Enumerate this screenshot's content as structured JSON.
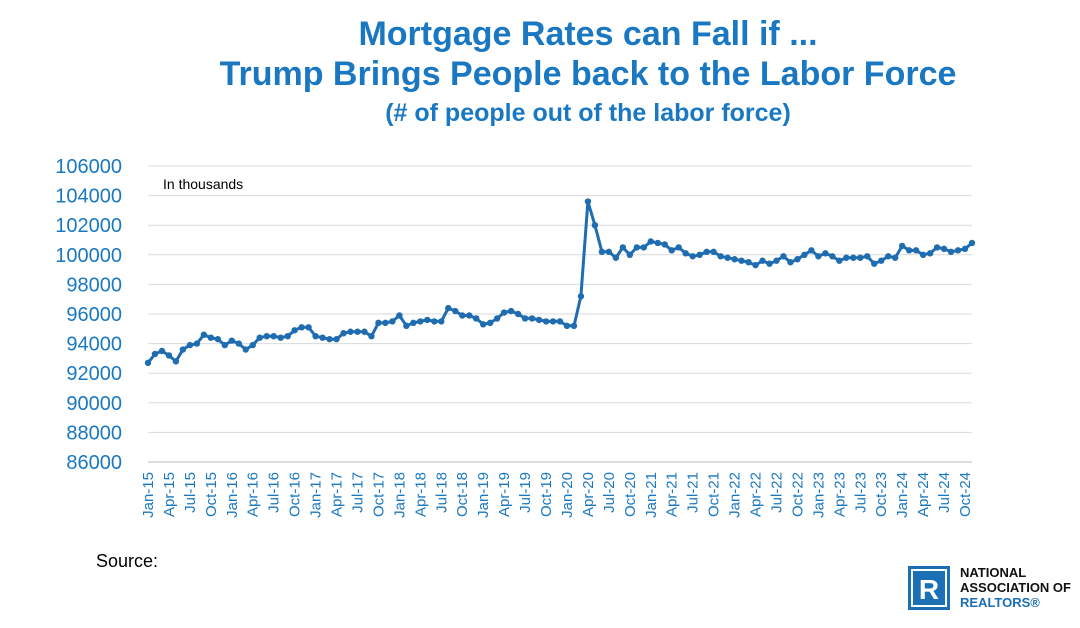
{
  "title": {
    "line1": "Mortgage Rates can Fall if ...",
    "line2": "Trump Brings People back to the Labor Force",
    "subtitle": "(# of people out of the labor force)"
  },
  "colors": {
    "title": "#1a78c2",
    "series": "#1f6db0",
    "axis_labels": "#1a78c2",
    "grid": "#d9d9d9",
    "logo": "#1a6fb5"
  },
  "chart_data": {
    "type": "line",
    "annotation": "In thousands",
    "ylim": [
      86000,
      106000
    ],
    "y_ticks": [
      86000,
      88000,
      90000,
      92000,
      94000,
      96000,
      98000,
      100000,
      102000,
      104000,
      106000
    ],
    "x_tick_labels": [
      "Jan-15",
      "Apr-15",
      "Jul-15",
      "Oct-15",
      "Jan-16",
      "Apr-16",
      "Jul-16",
      "Oct-16",
      "Jan-17",
      "Apr-17",
      "Jul-17",
      "Oct-17",
      "Jan-18",
      "Apr-18",
      "Jul-18",
      "Oct-18",
      "Jan-19",
      "Apr-19",
      "Jul-19",
      "Oct-19",
      "Jan-20",
      "Apr-20",
      "Jul-20",
      "Oct-20",
      "Jan-21",
      "Apr-21",
      "Jul-21",
      "Oct-21",
      "Jan-22",
      "Apr-22",
      "Jul-22",
      "Oct-22",
      "Jan-23",
      "Apr-23",
      "Jul-23",
      "Oct-23",
      "Jan-24",
      "Apr-24",
      "Jul-24",
      "Oct-24"
    ],
    "grid": true,
    "legend": "none",
    "series": [
      {
        "start": "Jan-15",
        "frequency": "monthly",
        "values": [
          92700,
          93300,
          93500,
          93200,
          92800,
          93600,
          93900,
          94000,
          94600,
          94400,
          94300,
          93900,
          94200,
          94000,
          93600,
          93900,
          94400,
          94500,
          94500,
          94400,
          94500,
          94900,
          95100,
          95100,
          94500,
          94400,
          94300,
          94300,
          94700,
          94800,
          94800,
          94800,
          94500,
          95400,
          95400,
          95500,
          95900,
          95200,
          95400,
          95500,
          95600,
          95500,
          95500,
          96400,
          96200,
          95900,
          95900,
          95700,
          95300,
          95400,
          95700,
          96100,
          96200,
          96000,
          95700,
          95700,
          95600,
          95500,
          95500,
          95500,
          95200,
          95200,
          97200,
          103600,
          102000,
          100200,
          100200,
          99800,
          100500,
          100000,
          100500,
          100500,
          100900,
          100800,
          100700,
          100300,
          100500,
          100100,
          99900,
          100000,
          100200,
          100200,
          99900,
          99800,
          99700,
          99600,
          99500,
          99300,
          99600,
          99400,
          99600,
          99900,
          99500,
          99700,
          100000,
          100300,
          99900,
          100100,
          99900,
          99600,
          99800,
          99800,
          99800,
          99900,
          99400,
          99600,
          99900,
          99800,
          100600,
          100300,
          100300,
          100000,
          100100,
          100500,
          100400,
          100200,
          100300,
          100400,
          100800
        ]
      }
    ]
  },
  "source_label": "Source:",
  "logo": {
    "mark": "R",
    "line1": "NATIONAL",
    "line2": "ASSOCIATION OF",
    "line3": "REALTORS®"
  }
}
